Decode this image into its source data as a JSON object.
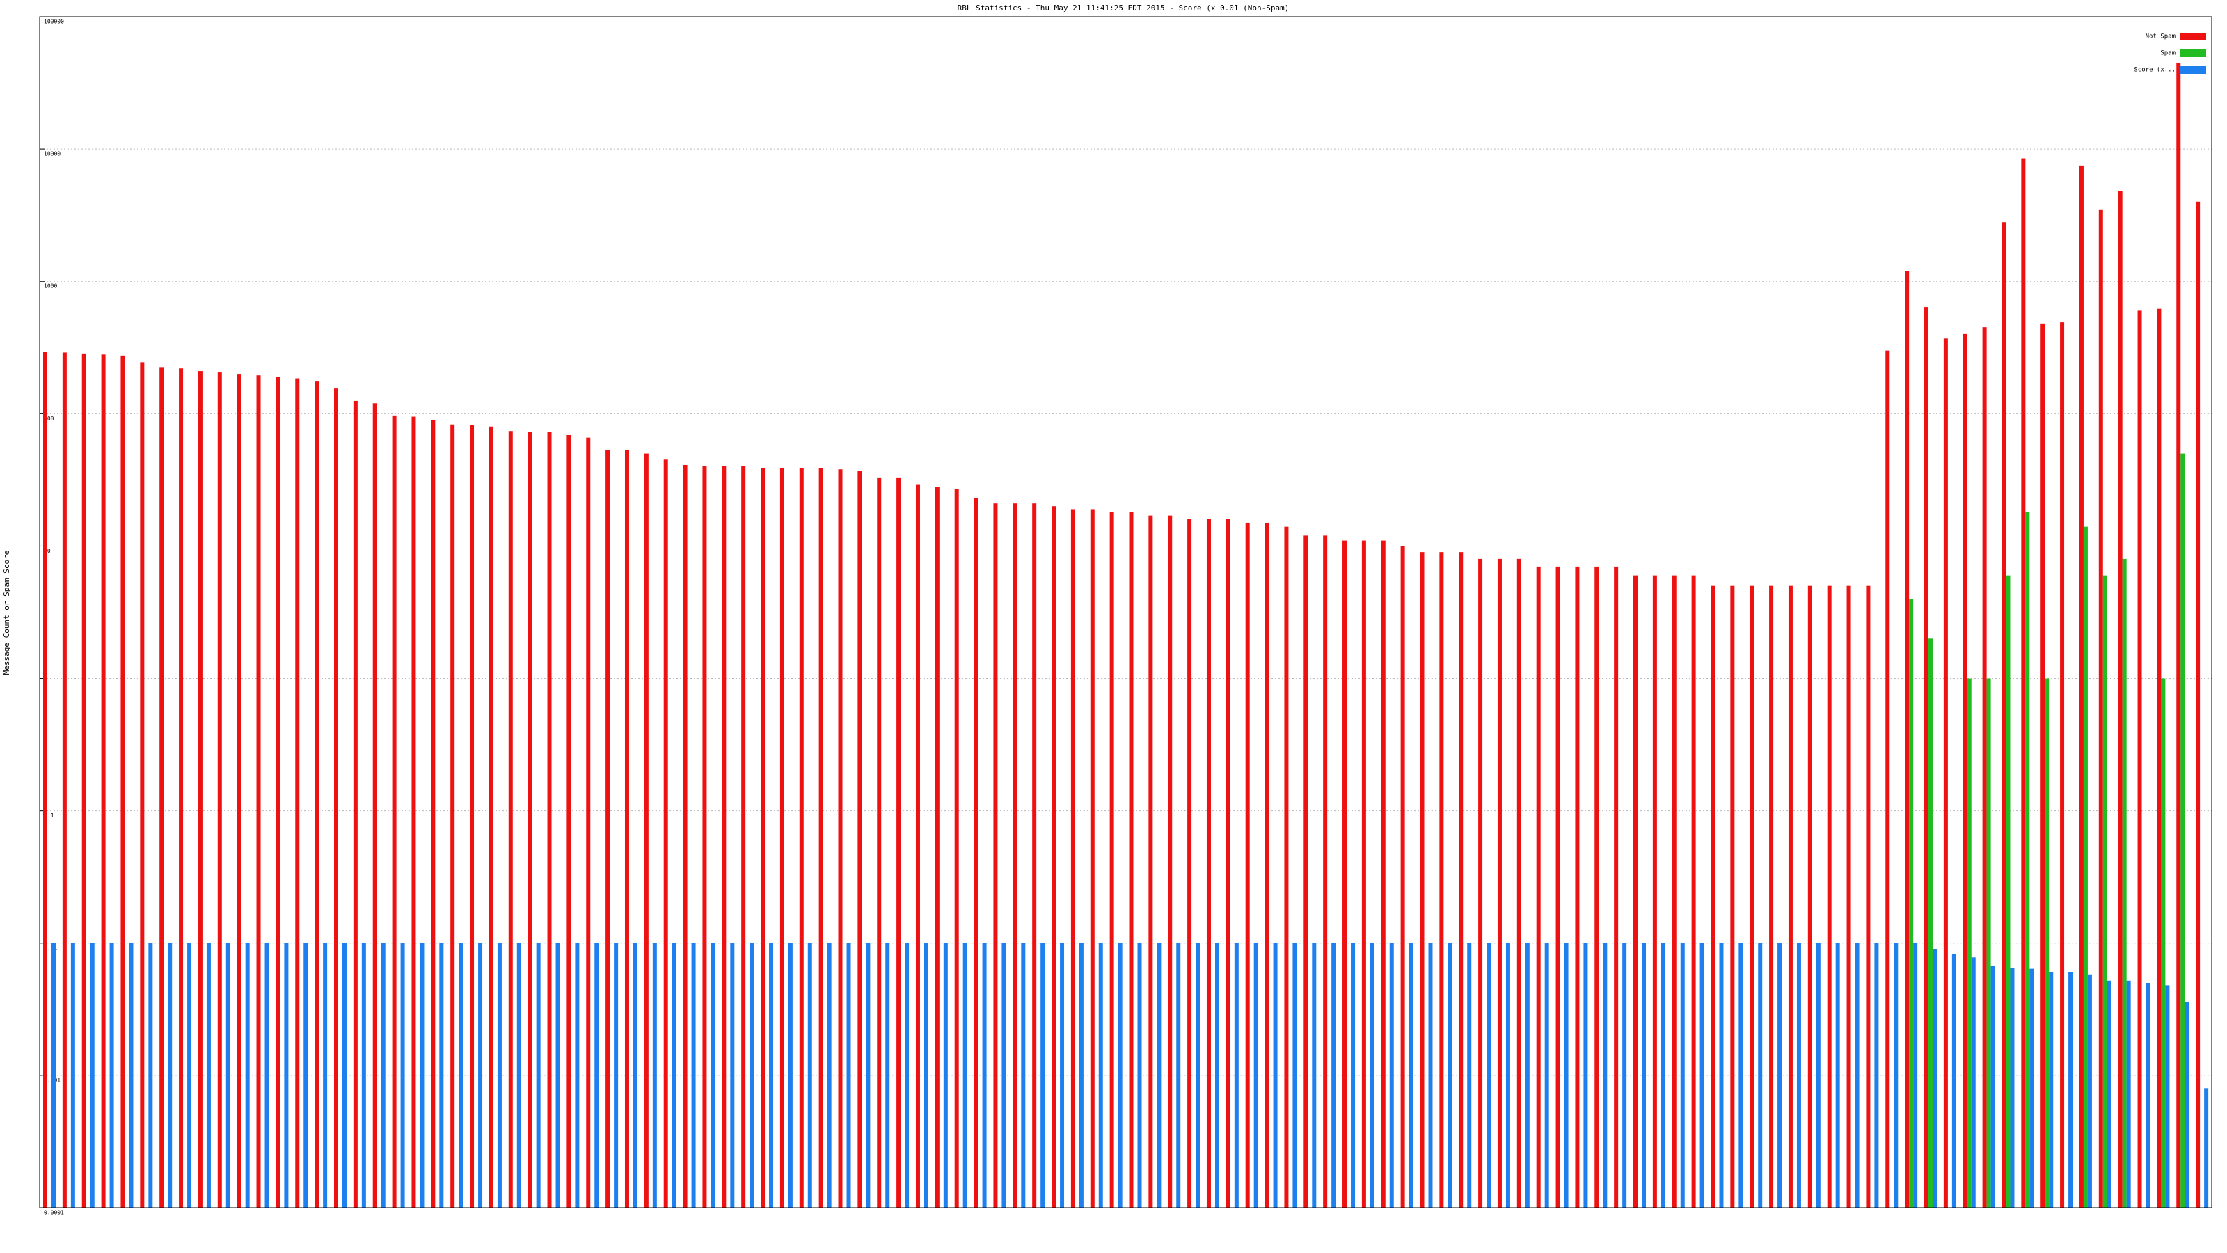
{
  "chart_data": {
    "type": "bar",
    "title": "RBL Statistics - Thu May 21 11:41:25 EDT 2015 - Score (x 0.01 (Non-Spam)",
    "y_label": "Message Count or Spam Score",
    "log_scale": true,
    "grid": true,
    "legend": "top-right",
    "ylim": [
      0.0001,
      100000
    ],
    "yticks": [
      0.0001,
      0.001,
      0.01,
      0.1,
      1,
      10,
      100,
      1000,
      10000,
      100000
    ],
    "categories": [
      null,
      null,
      null,
      null,
      null,
      null,
      null,
      null,
      null,
      null,
      null,
      null,
      null,
      null,
      null,
      null,
      null,
      null,
      null,
      null,
      null,
      null,
      null,
      null,
      null,
      null,
      null,
      null,
      null,
      null,
      null,
      null,
      null,
      null,
      null,
      null,
      null,
      null,
      null,
      null,
      null,
      null,
      null,
      null,
      null,
      null,
      null,
      null,
      null,
      null,
      null,
      null,
      null,
      null,
      null,
      null,
      null,
      null,
      null,
      null,
      null,
      null,
      null,
      null,
      null,
      null,
      null,
      null,
      null,
      null,
      null,
      null,
      null,
      null,
      null,
      null,
      null,
      null,
      null,
      null,
      null,
      null,
      null,
      null,
      null,
      null,
      null,
      null,
      null,
      null,
      null,
      null,
      null,
      null,
      null,
      null,
      null,
      null,
      null,
      null,
      null,
      null,
      null,
      null,
      null,
      null,
      null,
      null,
      null,
      null,
      null,
      null
    ],
    "series": [
      {
        "name": "Not Spam",
        "color": "#ee1111",
        "values": [
          292,
          290,
          285,
          280,
          275,
          245,
          225,
          220,
          210,
          205,
          200,
          195,
          190,
          185,
          175,
          155,
          125,
          120,
          97,
          95,
          90,
          83,
          82,
          80,
          74,
          73,
          73,
          69,
          66,
          53,
          53,
          50,
          45,
          41,
          40,
          40,
          40,
          39,
          39,
          39,
          39,
          38,
          37,
          33,
          33,
          29,
          28,
          27,
          23,
          21,
          21,
          21,
          20,
          19,
          19,
          18,
          18,
          17,
          17,
          16,
          16,
          16,
          15,
          15,
          14,
          12,
          12,
          11,
          11,
          11,
          10,
          9,
          9,
          9,
          8,
          8,
          8,
          7,
          7,
          7,
          7,
          7,
          6,
          6,
          6,
          6,
          5,
          5,
          5,
          5,
          5,
          5,
          5,
          5,
          5,
          300,
          1200,
          640,
          370,
          400,
          450,
          2800,
          8500,
          480,
          490,
          7500,
          3500,
          4800,
          600,
          620,
          45000,
          4000
        ]
      },
      {
        "name": "Spam",
        "color": "#22bb22",
        "values": [
          null,
          null,
          null,
          null,
          null,
          null,
          null,
          null,
          null,
          null,
          null,
          null,
          null,
          null,
          null,
          null,
          null,
          null,
          null,
          null,
          null,
          null,
          null,
          null,
          null,
          null,
          null,
          null,
          null,
          null,
          null,
          null,
          null,
          null,
          null,
          null,
          null,
          null,
          null,
          null,
          null,
          null,
          null,
          null,
          null,
          null,
          null,
          null,
          null,
          null,
          null,
          null,
          null,
          null,
          null,
          null,
          null,
          null,
          null,
          null,
          null,
          null,
          null,
          null,
          null,
          null,
          null,
          null,
          null,
          null,
          null,
          null,
          null,
          null,
          null,
          null,
          null,
          null,
          null,
          null,
          null,
          null,
          null,
          null,
          null,
          null,
          null,
          null,
          null,
          null,
          null,
          null,
          null,
          null,
          null,
          null,
          4,
          2,
          null,
          1,
          1,
          6,
          18,
          1,
          null,
          14,
          6,
          8,
          null,
          1,
          50,
          null
        ]
      },
      {
        "name": "Score (x...",
        "color": "#1e80ee",
        "values": [
          0.01,
          0.01,
          0.01,
          0.01,
          0.01,
          0.01,
          0.01,
          0.01,
          0.01,
          0.01,
          0.01,
          0.01,
          0.01,
          0.01,
          0.01,
          0.01,
          0.01,
          0.01,
          0.01,
          0.01,
          0.01,
          0.01,
          0.01,
          0.01,
          0.01,
          0.01,
          0.01,
          0.01,
          0.01,
          0.01,
          0.01,
          0.01,
          0.01,
          0.01,
          0.01,
          0.01,
          0.01,
          0.01,
          0.01,
          0.01,
          0.01,
          0.01,
          0.01,
          0.01,
          0.01,
          0.01,
          0.01,
          0.01,
          0.01,
          0.01,
          0.01,
          0.01,
          0.01,
          0.01,
          0.01,
          0.01,
          0.01,
          0.01,
          0.01,
          0.01,
          0.01,
          0.01,
          0.01,
          0.01,
          0.01,
          0.01,
          0.01,
          0.01,
          0.01,
          0.01,
          0.01,
          0.01,
          0.01,
          0.01,
          0.01,
          0.01,
          0.01,
          0.01,
          0.01,
          0.01,
          0.01,
          0.01,
          0.01,
          0.01,
          0.01,
          0.01,
          0.01,
          0.01,
          0.01,
          0.01,
          0.01,
          0.01,
          0.01,
          0.01,
          0.01,
          0.01,
          0.01,
          0.009,
          0.0083,
          0.0078,
          0.0067,
          0.0065,
          0.0064,
          0.006,
          0.006,
          0.0058,
          0.0052,
          0.0052,
          0.005,
          0.0048,
          0.0036,
          0.0008
        ]
      }
    ]
  }
}
